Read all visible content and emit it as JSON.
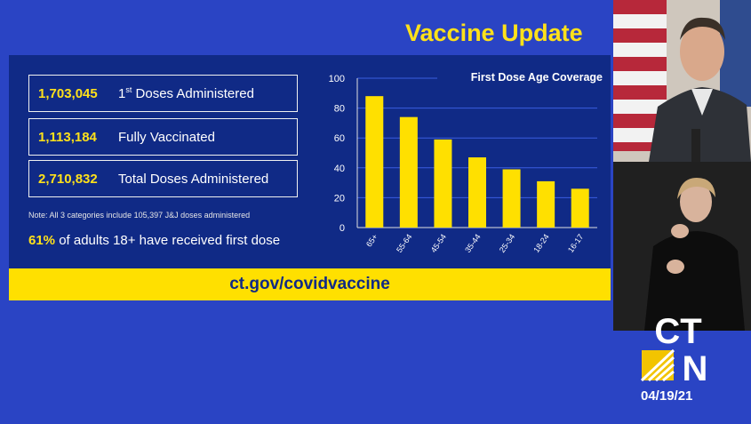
{
  "header": {
    "title": "Vaccine Update"
  },
  "stats": [
    {
      "value": "1,703,045",
      "label_main": "1",
      "label_sup": "st",
      "label_rest": " Doses Administered"
    },
    {
      "value": "1,113,184",
      "label": "Fully Vaccinated"
    },
    {
      "value": "2,710,832",
      "label": "Total Doses Administered"
    }
  ],
  "note": "Note: All 3 categories include 105,397 J&J doses administered",
  "adults": {
    "pct": "61%",
    "text": " of adults 18+ have received first dose"
  },
  "footer": {
    "url": "ct.gov/covidvaccine"
  },
  "broadcast": {
    "logo_line1": "CT",
    "logo_line2": "N",
    "date": "04/19/21"
  },
  "colors": {
    "background": "#2a44c4",
    "panel": "#102a86",
    "accent": "#ffe11a",
    "bar": "#ffe000"
  },
  "chart_data": {
    "type": "bar",
    "title": "First Dose Age Coverage",
    "categories": [
      "65+",
      "55-64",
      "45-54",
      "35-44",
      "25-34",
      "18-24",
      "16-17"
    ],
    "values": [
      88,
      74,
      59,
      47,
      39,
      31,
      26
    ],
    "ylim": [
      0,
      100
    ],
    "yticks": [
      0,
      20,
      40,
      60,
      80,
      100
    ],
    "grid": true,
    "xlabel": "",
    "ylabel": ""
  }
}
